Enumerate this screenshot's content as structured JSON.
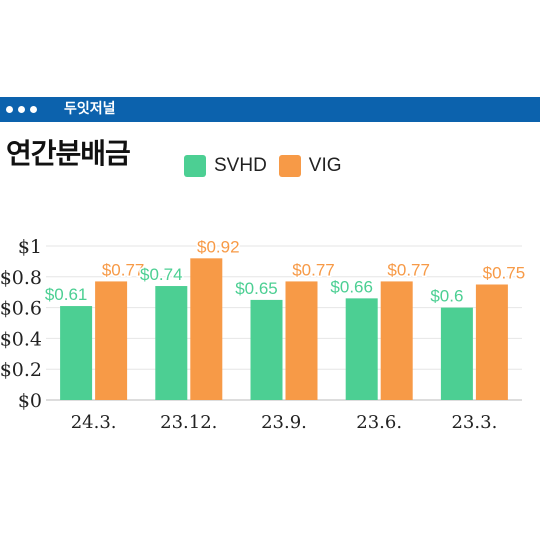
{
  "header": {
    "brand": "두잇저널"
  },
  "title": "연간분배금",
  "colors": {
    "header_bar": "#0c62ad",
    "svhd": "#4ccf93",
    "vig": "#f79a47"
  },
  "chart_data": {
    "type": "bar",
    "categories": [
      "24.3.",
      "23.12.",
      "23.9.",
      "23.6.",
      "23.3."
    ],
    "series": [
      {
        "name": "SVHD",
        "values": [
          0.61,
          0.74,
          0.65,
          0.66,
          0.6
        ],
        "labels": [
          "$0.61",
          "$0.74",
          "$0.65",
          "$0.66",
          "$0.6"
        ]
      },
      {
        "name": "VIG",
        "values": [
          0.77,
          0.92,
          0.77,
          0.77,
          0.75
        ],
        "labels": [
          "$0.77",
          "$0.92",
          "$0.77",
          "$0.77",
          "$0.75"
        ]
      }
    ],
    "ylim": [
      0,
      1
    ],
    "yticks": [
      0,
      0.2,
      0.4,
      0.6,
      0.8,
      1
    ],
    "ytick_labels": [
      "$0",
      "$0.2",
      "$0.4",
      "$0.6",
      "$0.8",
      "$1"
    ],
    "grid": true,
    "legend": "top"
  }
}
